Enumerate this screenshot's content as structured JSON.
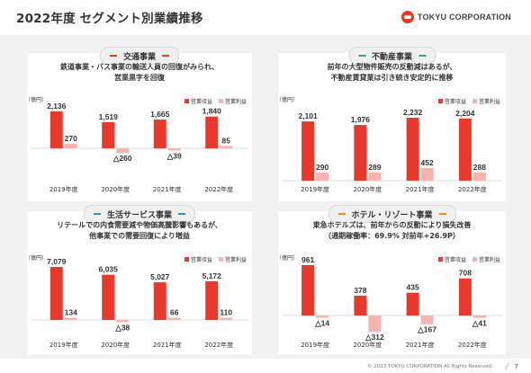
{
  "header": {
    "title": "2022年度 セグメント別業績推移",
    "logo_text": "TOKYU CORPORATION"
  },
  "unit_label": "（億円）",
  "legend": {
    "revenue": "営業収益",
    "profit": "営業利益"
  },
  "colors": {
    "revenue": "#e8392d",
    "profit": "#f7b3ad",
    "bg": "#f2f2f2",
    "transport_dash": "#e8392d",
    "realestate_dash": "#2ba98f",
    "lifestyle_dash": "#3a8cc9",
    "hotel_dash": "#f28a20"
  },
  "chart_data": [
    {
      "type": "bar",
      "title": "交通事業",
      "description": [
        "鉄道事業・バス事業の輸送人員の回復がみられ、",
        "営業黒字を回復"
      ],
      "categories": [
        "2019年度",
        "2020年度",
        "2021年度",
        "2022年度"
      ],
      "series": [
        {
          "name": "営業収益",
          "values": [
            2136,
            1519,
            1665,
            1840
          ],
          "labels": [
            "2,136",
            "1,519",
            "1,665",
            "1,840"
          ]
        },
        {
          "name": "営業利益",
          "values": [
            270,
            -260,
            -39,
            85
          ],
          "labels": [
            "270",
            "△260",
            "△39",
            "85"
          ]
        }
      ]
    },
    {
      "type": "bar",
      "title": "不動産事業",
      "description": [
        "前年の大型物件販売の反動減はあるが、",
        "不動産賃貸業は引き続き安定的に推移"
      ],
      "categories": [
        "2019年度",
        "2020年度",
        "2021年度",
        "2022年度"
      ],
      "series": [
        {
          "name": "営業収益",
          "values": [
            2101,
            1976,
            2232,
            2204
          ],
          "labels": [
            "2,101",
            "1,976",
            "2,232",
            "2,204"
          ]
        },
        {
          "name": "営業利益",
          "values": [
            290,
            289,
            452,
            288
          ],
          "labels": [
            "290",
            "289",
            "452",
            "288"
          ]
        }
      ]
    },
    {
      "type": "bar",
      "title": "生活サービス事業",
      "description": [
        "リテールでの内食需要減や物価高騰影響もあるが、",
        "他事業での需要回復により増益"
      ],
      "categories": [
        "2019年度",
        "2020年度",
        "2021年度",
        "2022年度"
      ],
      "series": [
        {
          "name": "営業収益",
          "values": [
            7079,
            6035,
            5027,
            5172
          ],
          "labels": [
            "7,079",
            "6,035",
            "5,027",
            "5,172"
          ]
        },
        {
          "name": "営業利益",
          "values": [
            134,
            -38,
            66,
            110
          ],
          "labels": [
            "134",
            "△38",
            "66",
            "110"
          ]
        }
      ]
    },
    {
      "type": "bar",
      "title": "ホテル・リゾート事業",
      "description": [
        "東急ホテルズは、前年からの反動により損失改善",
        "（通期稼働率：69.9% 対前年+26.9P）"
      ],
      "categories": [
        "2019年度",
        "2020年度",
        "2021年度",
        "2022年度"
      ],
      "series": [
        {
          "name": "営業収益",
          "values": [
            961,
            378,
            435,
            708
          ],
          "labels": [
            "961",
            "378",
            "435",
            "708"
          ]
        },
        {
          "name": "営業利益",
          "values": [
            -14,
            -312,
            -167,
            -41
          ],
          "labels": [
            "△14",
            "△312",
            "△167",
            "△41"
          ]
        }
      ]
    }
  ],
  "footer": {
    "copyright": "© 2023 TOKYU CORPORATION All Rights Reserved.",
    "page": "7"
  }
}
